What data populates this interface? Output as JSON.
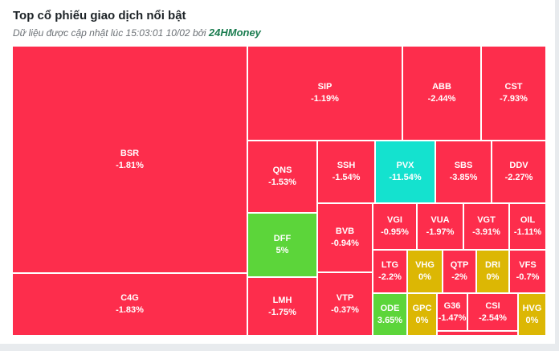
{
  "header": {
    "title": "Top cổ phiếu giao dịch nổi bật",
    "subtitle_prefix": "Dữ liệu được cập nhật lúc 15:03:01 10/02 bởi",
    "brand": "24HMoney"
  },
  "colors": {
    "decrease": "#fd2d4c",
    "increase": "#5cd53a",
    "floor": "#14e2cf",
    "reference": "#dcb704"
  },
  "tiles": {
    "bsr": {
      "symbol": "BSR",
      "change": "-1.81%"
    },
    "c4g": {
      "symbol": "C4G",
      "change": "-1.83%"
    },
    "sip": {
      "symbol": "SIP",
      "change": "-1.19%"
    },
    "abb": {
      "symbol": "ABB",
      "change": "-2.44%"
    },
    "cst": {
      "symbol": "CST",
      "change": "-7.93%"
    },
    "qns": {
      "symbol": "QNS",
      "change": "-1.53%"
    },
    "ssh": {
      "symbol": "SSH",
      "change": "-1.54%"
    },
    "pvx": {
      "symbol": "PVX",
      "change": "-11.54%"
    },
    "sbs": {
      "symbol": "SBS",
      "change": "-3.85%"
    },
    "ddv": {
      "symbol": "DDV",
      "change": "-2.27%"
    },
    "dff": {
      "symbol": "DFF",
      "change": "5%"
    },
    "lmh": {
      "symbol": "LMH",
      "change": "-1.75%"
    },
    "bvb": {
      "symbol": "BVB",
      "change": "-0.94%"
    },
    "vtp": {
      "symbol": "VTP",
      "change": "-0.37%"
    },
    "vgi": {
      "symbol": "VGI",
      "change": "-0.95%"
    },
    "vua": {
      "symbol": "VUA",
      "change": "-1.97%"
    },
    "vgt": {
      "symbol": "VGT",
      "change": "-3.91%"
    },
    "oil": {
      "symbol": "OIL",
      "change": "-1.11%"
    },
    "ltg": {
      "symbol": "LTG",
      "change": "-2.2%"
    },
    "vhg": {
      "symbol": "VHG",
      "change": "0%"
    },
    "qtp": {
      "symbol": "QTP",
      "change": "-2%"
    },
    "dri": {
      "symbol": "DRI",
      "change": "0%"
    },
    "vfs": {
      "symbol": "VFS",
      "change": "-0.7%"
    },
    "ode": {
      "symbol": "ODE",
      "change": "3.65%"
    },
    "gpc": {
      "symbol": "GPC",
      "change": "0%"
    },
    "g36": {
      "symbol": "G36",
      "change": "-1.47%"
    },
    "csi": {
      "symbol": "CSI",
      "change": "-2.54%"
    },
    "hvg": {
      "symbol": "HVG",
      "change": "0%"
    }
  }
}
